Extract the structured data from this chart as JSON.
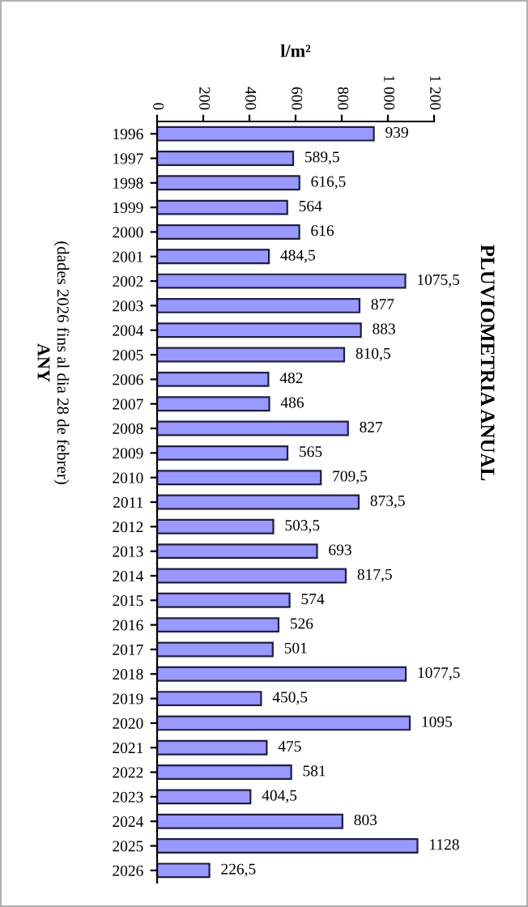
{
  "chart_data": {
    "type": "bar",
    "orientation": "horizontal",
    "title": "PLUVIOMETRIA ANUAL",
    "xlabel": "l/m²",
    "ylabel": "ANY",
    "annotations": [
      "(dades 2026 fins al dia 28 de febrer)"
    ],
    "categories": [
      "1996",
      "1997",
      "1998",
      "1999",
      "2000",
      "2001",
      "2002",
      "2003",
      "2004",
      "2005",
      "2006",
      "2007",
      "2008",
      "2009",
      "2010",
      "2011",
      "2012",
      "2013",
      "2014",
      "2015",
      "2016",
      "2017",
      "2018",
      "2019",
      "2020",
      "2021",
      "2022",
      "2023",
      "2024",
      "2025",
      "2026"
    ],
    "values": [
      939,
      589.5,
      616.5,
      564,
      616,
      484.5,
      1075.5,
      877,
      883,
      810.5,
      482,
      486,
      827,
      565,
      709.5,
      873.5,
      503.5,
      693,
      817.5,
      574,
      526,
      501,
      1077.5,
      450.5,
      1095,
      475,
      581,
      404.5,
      803,
      1128,
      226.5
    ],
    "value_labels": [
      "939",
      "589,5",
      "616,5",
      "564",
      "616",
      "484,5",
      "1075,5",
      "877",
      "883",
      "810,5",
      "482",
      "486",
      "827",
      "565",
      "709,5",
      "873,5",
      "503,5",
      "693",
      "817,5",
      "574",
      "526",
      "501",
      "1077,5",
      "450,5",
      "1095",
      "475",
      "581",
      "404,5",
      "803",
      "1128",
      "226,5"
    ],
    "color": "#9999ff",
    "xlim": [
      0,
      1200
    ],
    "xticks": [
      0,
      200,
      400,
      600,
      800,
      {
        "value": 1000,
        "label": "1 000"
      },
      {
        "value": 1200,
        "label": "1 200"
      }
    ],
    "grid": false,
    "legend": false
  }
}
